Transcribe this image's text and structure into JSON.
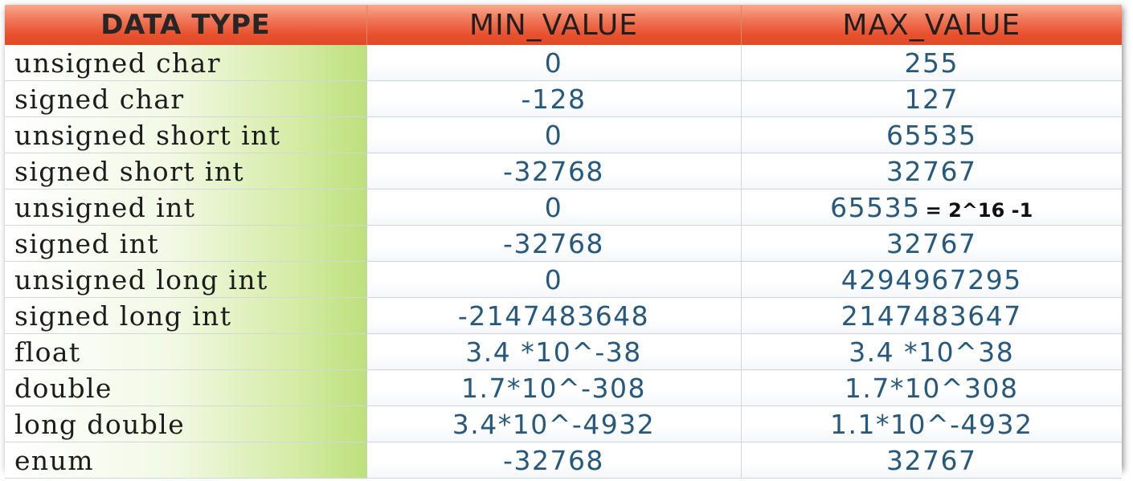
{
  "table": {
    "headers": {
      "type": "DATA TYPE",
      "min": "MIN_VALUE",
      "max": "MAX_VALUE"
    },
    "rows": [
      {
        "type": "unsigned char",
        "min": "0",
        "max": "255",
        "note": ""
      },
      {
        "type": "signed char",
        "min": "-128",
        "max": "127",
        "note": ""
      },
      {
        "type": "unsigned short int",
        "min": "0",
        "max": "65535",
        "note": ""
      },
      {
        "type": "signed short int",
        "min": "-32768",
        "max": "32767",
        "note": ""
      },
      {
        "type": "unsigned int",
        "min": "0",
        "max": "65535",
        "note": "= 2^16  -1"
      },
      {
        "type": "signed int",
        "min": "-32768",
        "max": "32767",
        "note": ""
      },
      {
        "type": "unsigned long int",
        "min": "0",
        "max": "4294967295",
        "note": ""
      },
      {
        "type": "signed long int",
        "min": "-2147483648",
        "max": "2147483647",
        "note": ""
      },
      {
        "type": "float",
        "min": "3.4 *10^-38",
        "max": "3.4 *10^38",
        "note": ""
      },
      {
        "type": "double",
        "min": "1.7*10^-308",
        "max": "1.7*10^308",
        "note": ""
      },
      {
        "type": "long double",
        "min": "3.4*10^-4932",
        "max": "1.1*10^-4932",
        "note": ""
      },
      {
        "type": "enum",
        "min": "-32768",
        "max": "32767",
        "note": ""
      }
    ]
  },
  "colors": {
    "header_orange": "#e8502d",
    "type_column_green": "#bde07c",
    "value_text_blue": "#27597e"
  }
}
